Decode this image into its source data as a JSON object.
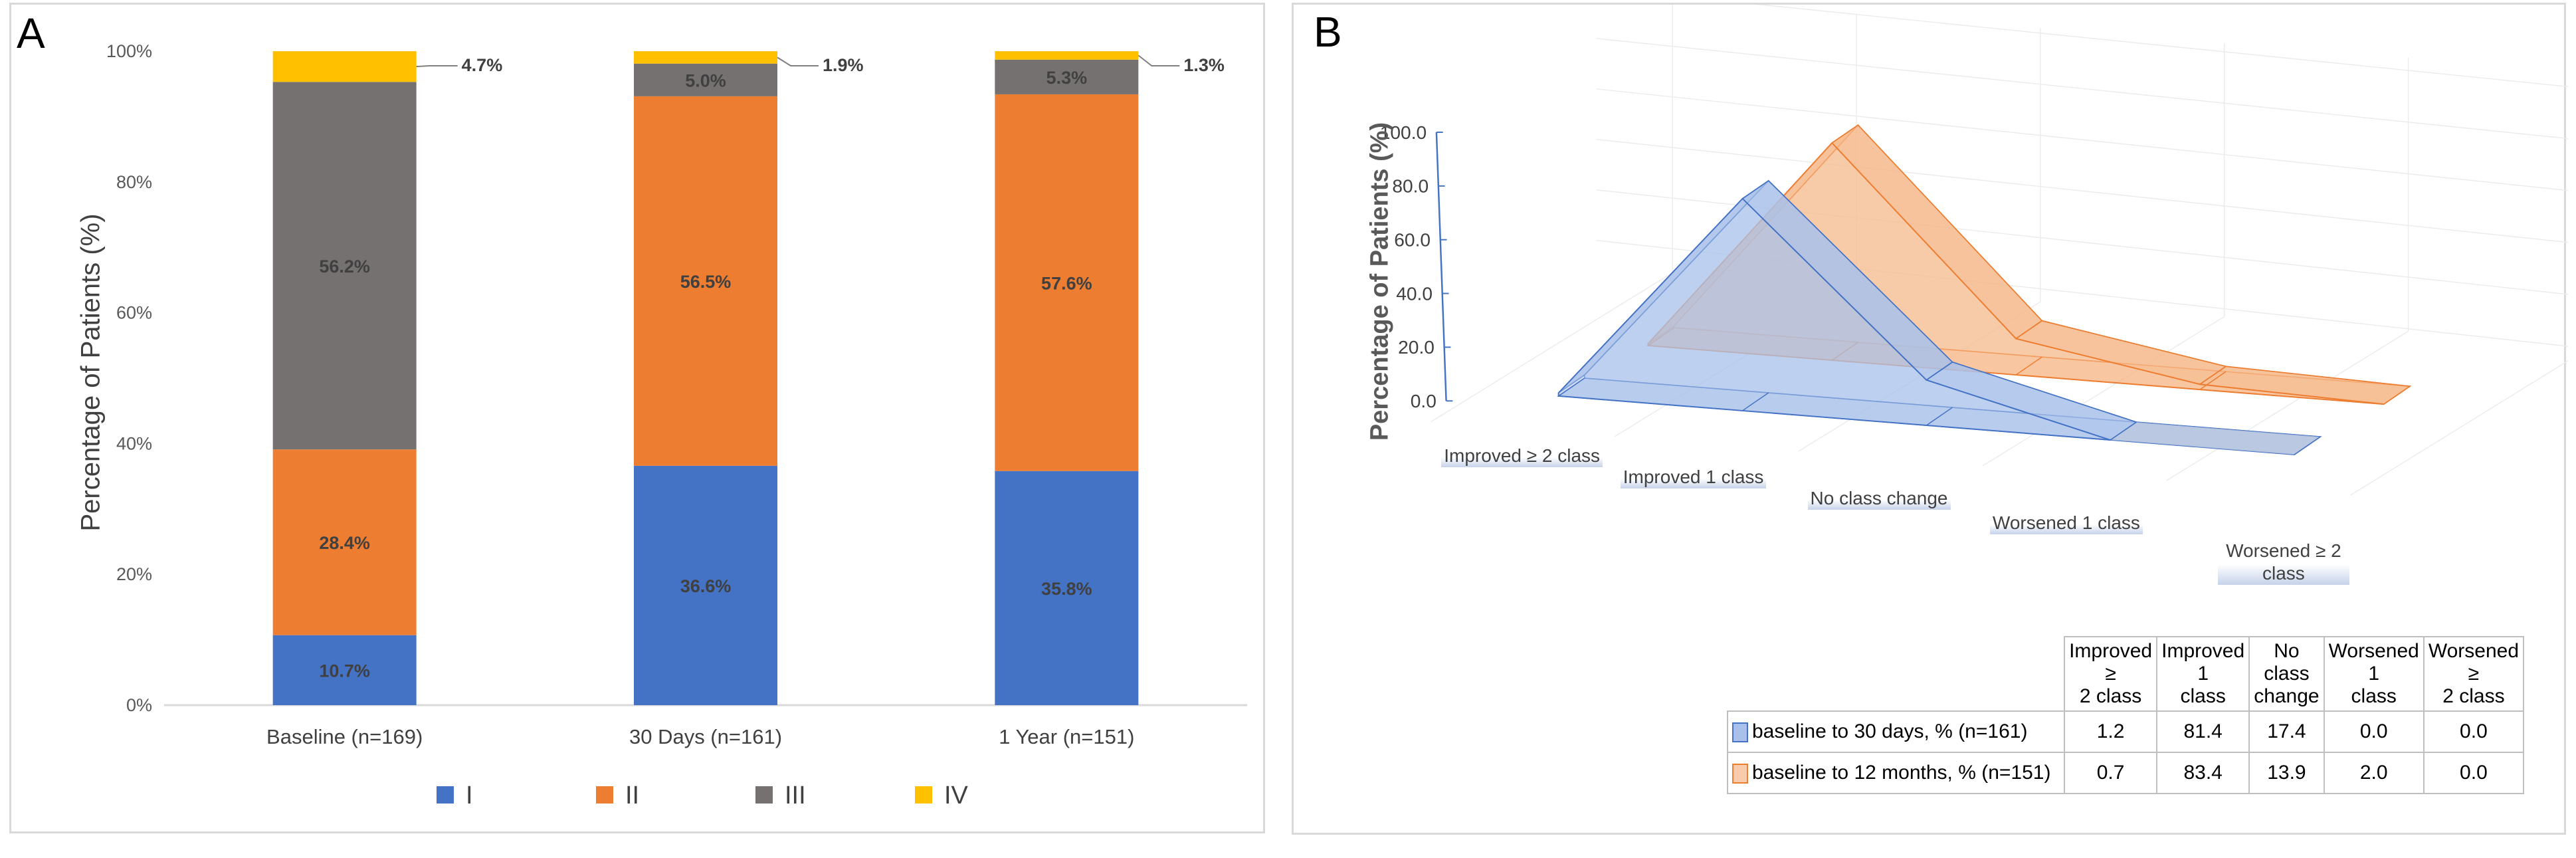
{
  "panelA": {
    "letter": "A",
    "chart_data": {
      "type": "bar",
      "stacked": true,
      "ylabel": "Percentage of Patients (%)",
      "ylim": [
        0,
        100
      ],
      "yticks": [
        "0%",
        "20%",
        "40%",
        "60%",
        "80%",
        "100%"
      ],
      "categories": [
        "Baseline (n=169)",
        "30 Days (n=161)",
        "1 Year (n=151)"
      ],
      "series": [
        {
          "name": "I",
          "color": "#4472C4",
          "values": [
            10.7,
            36.6,
            35.8
          ],
          "labels": [
            "10.7%",
            "36.6%",
            "35.8%"
          ]
        },
        {
          "name": "II",
          "color": "#ED7D31",
          "values": [
            28.4,
            56.5,
            57.6
          ],
          "labels": [
            "28.4%",
            "56.5%",
            "57.6%"
          ]
        },
        {
          "name": "III",
          "color": "#767171",
          "values": [
            56.2,
            5.0,
            5.3
          ],
          "labels": [
            "56.2%",
            "5.0%",
            "5.3%"
          ]
        },
        {
          "name": "IV",
          "color": "#FFC000",
          "values": [
            4.7,
            1.9,
            1.3
          ],
          "labels": [
            "4.7%",
            "1.9%",
            "1.3%"
          ]
        }
      ],
      "legend": "bottom"
    }
  },
  "panelB": {
    "letter": "B",
    "chart_data": {
      "type": "area",
      "style": "3d",
      "ylabel": "Percentage of Patients (%)",
      "ylim": [
        0,
        100
      ],
      "yticks": [
        "0.0",
        "20.0",
        "40.0",
        "60.0",
        "80.0",
        "100.0"
      ],
      "categories": [
        "Improved ≥ 2 class",
        "Improved 1 class",
        "No class change",
        "Worsened 1 class",
        "Worsened ≥ 2 class"
      ],
      "series": [
        {
          "name": "baseline to 30 days, % (n=161)",
          "color": "#4472C4",
          "fill": "#A9C1EA",
          "values": [
            1.2,
            81.4,
            17.4,
            0.0,
            0.0
          ]
        },
        {
          "name": "baseline to 12 months, % (n=151)",
          "color": "#ED7D31",
          "fill": "#F6B98C",
          "values": [
            0.7,
            83.4,
            13.9,
            2.0,
            0.0
          ]
        }
      ]
    },
    "table": {
      "headers": [
        "Improved ≥\n2 class",
        "Improved 1\nclass",
        "No class\nchange",
        "Worsened 1\nclass",
        "Worsened ≥\n2 class"
      ],
      "rows": [
        {
          "label": "baseline to 30 days, % (n=161)",
          "cells": [
            "1.2",
            "81.4",
            "17.4",
            "0.0",
            "0.0"
          ]
        },
        {
          "label": "baseline to 12 months, % (n=151)",
          "cells": [
            "0.7",
            "83.4",
            "13.9",
            "2.0",
            "0.0"
          ]
        }
      ]
    }
  }
}
